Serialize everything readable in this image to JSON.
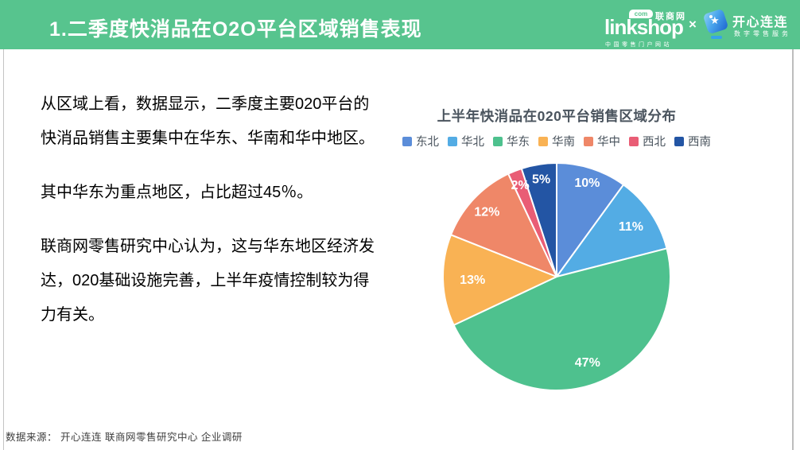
{
  "header": {
    "title": "1.二季度快消品在O2O平台区域销售表现",
    "bg_color": "#57c48e",
    "logos": {
      "linkshop": {
        "name": "linkshop",
        "com_badge": "com",
        "cn_name": "联商网",
        "tagline": "中国零售门户网站"
      },
      "separator": "×",
      "kaixin": {
        "name": "开心连连",
        "tagline": "数字零售服务",
        "icon": "tag-star-icon"
      }
    }
  },
  "body_text": {
    "paragraphs": [
      "从区域上看，数据显示，二季度主要020平台的快消品销售主要集中在华东、华南和华中地区。",
      "其中华东为重点地区，占比超过45％。",
      "联商网零售研究中心认为，这与华东地区经济发达，020基础设施完善，上半年疫情控制较为得力有关。"
    ]
  },
  "chart_data": {
    "type": "pie",
    "title": "上半年快消品在020平台销售区域分布",
    "categories": [
      "东北",
      "华北",
      "华东",
      "华南",
      "华中",
      "西北",
      "西南"
    ],
    "values": [
      10,
      11,
      47,
      13,
      12,
      2,
      5
    ],
    "labels": [
      "10%",
      "11%",
      "47%",
      "13%",
      "12%",
      "2%",
      "5%"
    ],
    "colors": [
      "#5b8dd9",
      "#53ace4",
      "#4ec18e",
      "#f9b254",
      "#ef8768",
      "#e95d75",
      "#2355a4"
    ],
    "start_angle_deg": 0,
    "direction": "clockwise",
    "legend_position": "top",
    "label_color": "#ffffff",
    "slice_border_color": "#ffffff"
  },
  "footer": {
    "source": "数据来源： 开心连连 联商网零售研究中心 企业调研"
  }
}
